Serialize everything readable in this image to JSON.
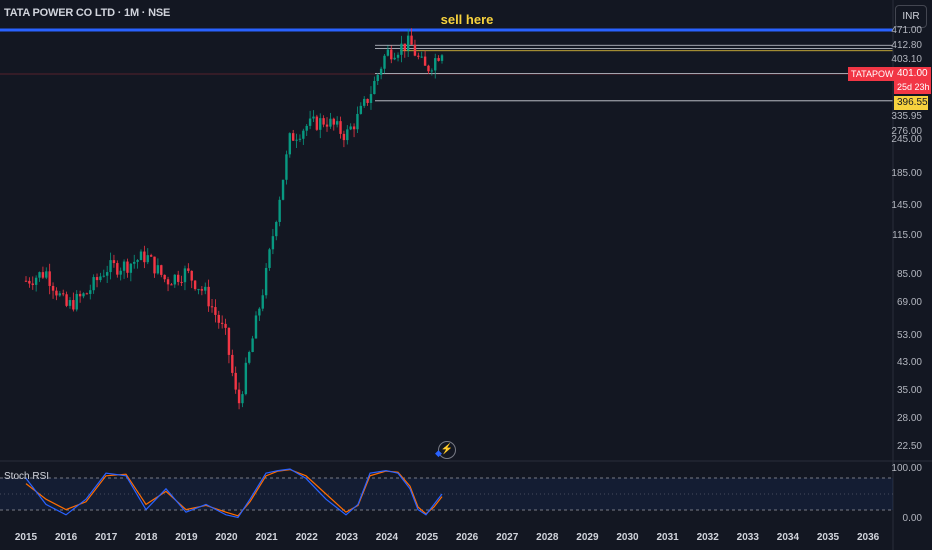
{
  "header": {
    "symbol_title": "TATA POWER CO LTD · 1M · NSE",
    "currency_button": "INR",
    "annotation": "sell here"
  },
  "price_axis": {
    "ticks": [
      "471.00",
      "412.80",
      "403.10",
      "396.55",
      "335.95",
      "276.00",
      "245.00",
      "185.00",
      "145.00",
      "115.00",
      "85.00",
      "69.00",
      "53.00",
      "43.00",
      "35.00",
      "28.00",
      "22.50"
    ],
    "symbol_tag": "TATAPOWER",
    "last_price": "401.00",
    "countdown": "25d 23h",
    "level_highlight": "396.55",
    "level_labels": [
      "412.80",
      "403.10",
      "335.95",
      "276.00"
    ]
  },
  "time_axis": {
    "years": [
      "2015",
      "2016",
      "2017",
      "2018",
      "2019",
      "2020",
      "2021",
      "2022",
      "2023",
      "2024",
      "2025",
      "2026",
      "2027",
      "2028",
      "2029",
      "2030",
      "2031",
      "2032",
      "2033",
      "2034",
      "2035",
      "2036"
    ]
  },
  "indicator": {
    "title": "Stoch RSI",
    "ticks": [
      "100.00",
      "0.00"
    ]
  },
  "colors": {
    "background": "#131722",
    "up": "#089981",
    "down": "#f23645",
    "blue_line": "#2962ff",
    "annotation": "#f7d23e",
    "stoch_k": "#2962ff",
    "stoch_d": "#ff6d00"
  },
  "icons": {
    "replay": "lightning-icon",
    "marker": "blue-diamond-icon"
  },
  "chart_data": {
    "type": "candlestick",
    "x_unit": "year",
    "x": [
      2015.0,
      2015.5,
      2016.0,
      2016.5,
      2017.0,
      2017.5,
      2018.0,
      2018.5,
      2019.0,
      2019.5,
      2020.0,
      2020.3,
      2020.6,
      2021.0,
      2021.3,
      2021.6,
      2022.0,
      2022.5,
      2023.0,
      2023.3,
      2023.6,
      2024.0,
      2024.3,
      2024.6,
      2024.8,
      2025.0,
      2025.2,
      2025.4
    ],
    "close": [
      75,
      80,
      62,
      68,
      82,
      84,
      90,
      75,
      80,
      68,
      50,
      30,
      45,
      78,
      130,
      210,
      230,
      240,
      215,
      245,
      290,
      390,
      405,
      420,
      375,
      345,
      370,
      401
    ],
    "ylim": [
      22.5,
      471
    ],
    "y_scale": "log",
    "levels": [
      412.8,
      403.1,
      396.55,
      335.95,
      276
    ],
    "stoch_rsi": {
      "k": [
        80,
        30,
        10,
        40,
        90,
        85,
        20,
        60,
        15,
        30,
        10,
        5,
        40,
        90,
        95,
        98,
        80,
        40,
        10,
        30,
        90,
        95,
        90,
        60,
        20,
        10,
        30,
        50
      ],
      "d": [
        70,
        40,
        20,
        35,
        85,
        88,
        30,
        55,
        20,
        28,
        15,
        8,
        35,
        85,
        94,
        97,
        85,
        50,
        15,
        28,
        85,
        94,
        92,
        65,
        25,
        12,
        25,
        45
      ],
      "ylim": [
        0,
        100
      ],
      "upper_band": 80,
      "lower_band": 20
    }
  }
}
